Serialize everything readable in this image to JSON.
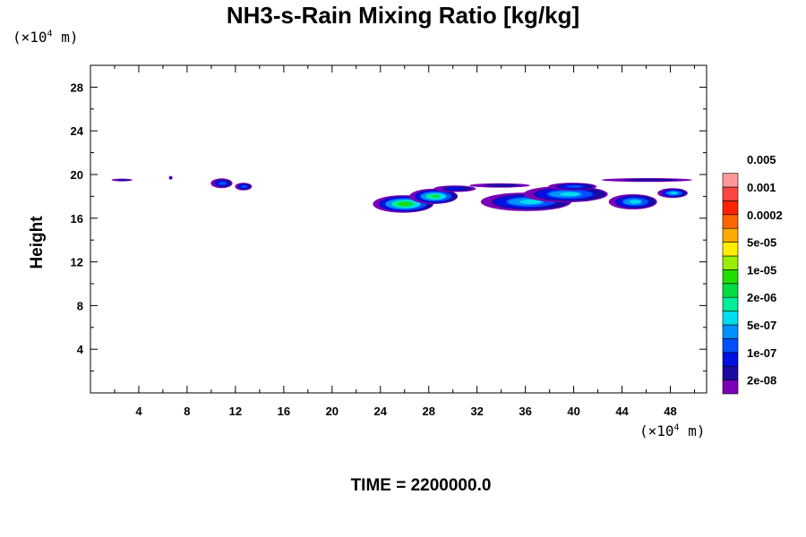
{
  "chart_data": {
    "type": "heatmap",
    "title": "NH3-s-Rain Mixing Ratio [kg/kg]",
    "ylabel": "Height",
    "xlabel": "",
    "x_unit": "(×10",
    "x_unit_exp": "4",
    "x_unit_suffix": " m)",
    "y_unit": "(×10",
    "y_unit_exp": "4",
    "y_unit_suffix": " m)",
    "xlim": [
      0,
      51
    ],
    "ylim": [
      0,
      30
    ],
    "x_ticks": [
      4,
      8,
      12,
      16,
      20,
      24,
      28,
      32,
      36,
      40,
      44,
      48
    ],
    "x_tick_labels": [
      "4",
      "8",
      "12",
      "16",
      "20",
      "24",
      "28",
      "32",
      "36",
      "40",
      "44",
      "48"
    ],
    "y_ticks": [
      4,
      8,
      12,
      16,
      20,
      24,
      28
    ],
    "y_tick_labels": [
      "4",
      "8",
      "12",
      "16",
      "20",
      "24",
      "28"
    ],
    "colorbar": {
      "colors": [
        "#7a00b8",
        "#1a0aa0",
        "#0010e0",
        "#0050ff",
        "#0090ff",
        "#00ddee",
        "#00ee99",
        "#00dd44",
        "#22dd00",
        "#99ee00",
        "#ffee00",
        "#ffaa00",
        "#ff6600",
        "#ff2200",
        "#ff4444",
        "#ff9999"
      ],
      "labels": [
        "2e-08",
        "1e-07",
        "5e-07",
        "2e-06",
        "1e-05",
        "5e-05",
        "0.0002",
        "0.001",
        "0.005"
      ]
    },
    "features": [
      {
        "x0": 1.8,
        "x1": 3.5,
        "y": 19.5,
        "h": 0.25,
        "peak": 1
      },
      {
        "x0": 6.5,
        "x1": 6.8,
        "y": 19.7,
        "h": 0.35,
        "peak": 1
      },
      {
        "x0": 10.0,
        "x1": 11.8,
        "y": 19.2,
        "h": 0.9,
        "peak": 3
      },
      {
        "x0": 12.0,
        "x1": 13.4,
        "y": 18.9,
        "h": 0.7,
        "peak": 3
      },
      {
        "x0": 23.5,
        "x1": 28.5,
        "y": 17.3,
        "h": 1.6,
        "peak": 8
      },
      {
        "x0": 26.5,
        "x1": 30.5,
        "y": 18.0,
        "h": 1.4,
        "peak": 7
      },
      {
        "x0": 28.5,
        "x1": 32.0,
        "y": 18.7,
        "h": 0.6,
        "peak": 2
      },
      {
        "x0": 32.5,
        "x1": 40.0,
        "y": 17.5,
        "h": 1.7,
        "peak": 5
      },
      {
        "x0": 36.0,
        "x1": 43.0,
        "y": 18.2,
        "h": 1.5,
        "peak": 5
      },
      {
        "x0": 38.0,
        "x1": 42.0,
        "y": 18.9,
        "h": 0.7,
        "peak": 3
      },
      {
        "x0": 43.0,
        "x1": 47.0,
        "y": 17.5,
        "h": 1.4,
        "peak": 5
      },
      {
        "x0": 47.0,
        "x1": 49.5,
        "y": 18.3,
        "h": 0.9,
        "peak": 5
      },
      {
        "x0": 42.5,
        "x1": 50.0,
        "y": 19.5,
        "h": 0.35,
        "peak": 1
      },
      {
        "x0": 31.5,
        "x1": 36.5,
        "y": 19.0,
        "h": 0.4,
        "peak": 1
      }
    ]
  },
  "time_label": "TIME = 2200000.0"
}
